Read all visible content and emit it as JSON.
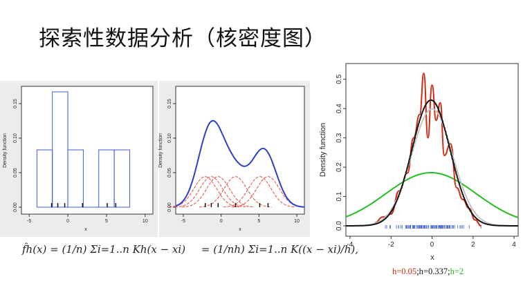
{
  "title": "探索性数据分析（核密度图）",
  "formula": {
    "part1": "f̂h(x) = (1/n) Σi=1..n Kh(x − xi)",
    "part2": "= (1/nh) Σi=1..n K((x − xi)/h),"
  },
  "caption": {
    "h1": "h=0.05",
    "sep1": ";",
    "h2": "h=0.337",
    "sep2": ";",
    "h3": "h=2",
    "c1": "#d62810",
    "c2": "#111111",
    "c3": "#22bb22"
  },
  "chart_data": [
    {
      "type": "bar",
      "subtype": "histogram",
      "bin_edges": [
        -4,
        -2,
        0,
        2,
        4,
        6,
        8
      ],
      "values": [
        0.083,
        0.167,
        0.083,
        0,
        0.083,
        0.083
      ],
      "rug": [
        -2.1,
        -1.3,
        -0.4,
        1.9,
        5.1,
        6.2
      ],
      "xlabel": "x",
      "ylabel": "Density function",
      "xlim": [
        -6,
        11
      ],
      "ylim": [
        0,
        0.17
      ],
      "xticks": [
        "-5",
        "0",
        "5",
        "10"
      ],
      "yticks": [
        "0.00",
        "0.05",
        "0.10",
        "0.15"
      ],
      "color": "#3a5bd9"
    },
    {
      "type": "line",
      "subtype": "kernel density",
      "bandwidth": 1.5,
      "points": [
        -2.1,
        -1.3,
        -0.4,
        1.9,
        5.1,
        6.2
      ],
      "xlabel": "x",
      "ylabel": "Density function",
      "xlim": [
        -6,
        11
      ],
      "ylim": [
        0,
        0.17
      ],
      "xticks": [
        "-5",
        "0",
        "5",
        "10"
      ],
      "yticks": [
        "0.00",
        "0.05",
        "0.10",
        "0.15"
      ],
      "colors": {
        "kde": "#2b3fcf",
        "kernels": "#e8463a"
      }
    },
    {
      "type": "line",
      "subtype": "kernel density comparison",
      "xlabel": "x",
      "ylabel": "Density function",
      "xlim": [
        -4.2,
        4.2
      ],
      "ylim": [
        0,
        0.53
      ],
      "xticks": [
        "-4",
        "-2",
        "0",
        "2",
        "4"
      ],
      "yticks": [
        "0.0",
        "0.1",
        "0.2",
        "0.3",
        "0.4",
        "0.5"
      ],
      "series": [
        {
          "name": "h=0.05",
          "color": "#d62810",
          "x": [
            -2.8,
            -2.4,
            -2.0,
            -1.6,
            -1.2,
            -0.9,
            -0.6,
            -0.4,
            -0.2,
            0.0,
            0.2,
            0.4,
            0.6,
            0.9,
            1.2,
            1.5,
            1.8,
            2.1,
            2.4
          ],
          "y": [
            0.01,
            0.03,
            0.04,
            0.12,
            0.18,
            0.3,
            0.38,
            0.52,
            0.3,
            0.48,
            0.36,
            0.42,
            0.24,
            0.28,
            0.13,
            0.09,
            0.06,
            0.02,
            0.0
          ]
        },
        {
          "name": "h=0.337",
          "color": "#111111",
          "sd": 0.93,
          "mean": -0.05
        },
        {
          "name": "gray",
          "color": "#c4c4c4",
          "sd": 1.0,
          "mean": 0.0
        },
        {
          "name": "h=2",
          "color": "#22bb22",
          "sd": 2.2,
          "mean": -0.05
        }
      ]
    }
  ]
}
